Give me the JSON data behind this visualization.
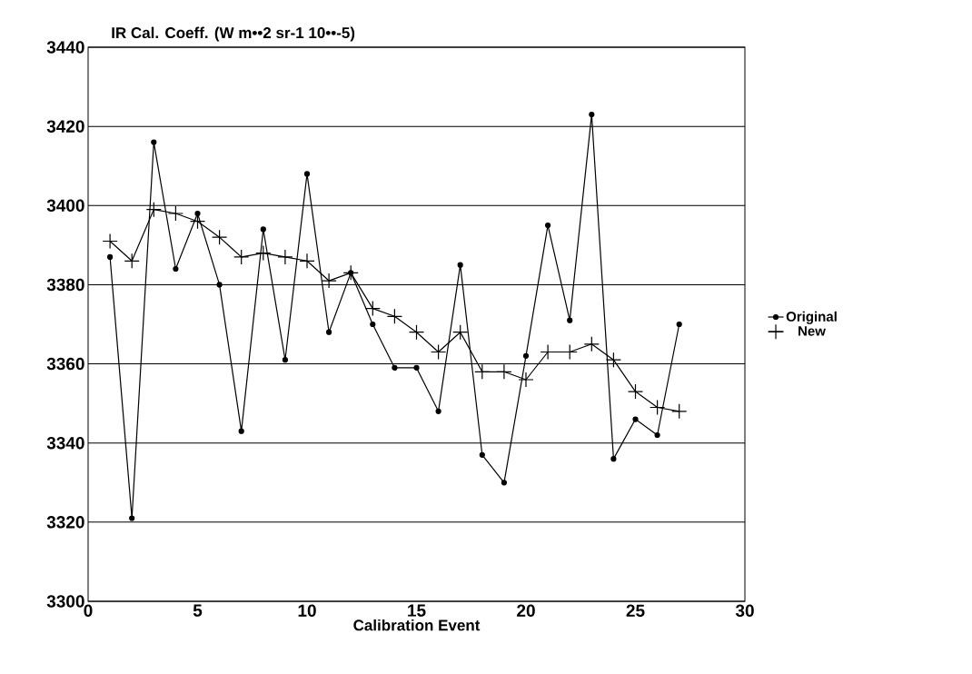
{
  "chart_data": {
    "type": "line",
    "title": "IR Cal. Coeff. (W m••2 sr-1 10••-5)",
    "xlabel": "Calibration Event",
    "x": [
      1,
      2,
      3,
      4,
      5,
      6,
      7,
      8,
      9,
      10,
      11,
      12,
      13,
      14,
      15,
      16,
      17,
      18,
      19,
      20,
      21,
      22,
      23,
      24,
      25,
      26,
      27
    ],
    "series": [
      {
        "name": "Original",
        "color": "#000000",
        "marker": "circle",
        "values": [
          3387,
          3321,
          3416,
          3384,
          3398,
          3380,
          3343,
          3394,
          3361,
          3408,
          3368,
          3383,
          3370,
          3359,
          3359,
          3348,
          3385,
          3337,
          3330,
          3362,
          3395,
          3371,
          3423,
          3336,
          3346,
          3342,
          3370
        ]
      },
      {
        "name": "New",
        "color": "#000000",
        "marker": "cross",
        "values": [
          3391,
          3386,
          3399,
          3398,
          3396,
          3392,
          3387,
          3388,
          3387,
          3386,
          3381,
          3383,
          3374,
          3372,
          3368,
          3363,
          3368,
          3358,
          3358,
          3356,
          3363,
          3363,
          3365,
          3361,
          3353,
          3349,
          3348
        ]
      }
    ],
    "xlim": [
      0,
      30
    ],
    "xticks": [
      0,
      5,
      10,
      15,
      20,
      25,
      30
    ],
    "ylim": [
      3300,
      3440
    ],
    "yticks": [
      3300,
      3320,
      3340,
      3360,
      3380,
      3400,
      3420,
      3440
    ],
    "grid": "y",
    "legend": "right",
    "line_style": "solid"
  }
}
